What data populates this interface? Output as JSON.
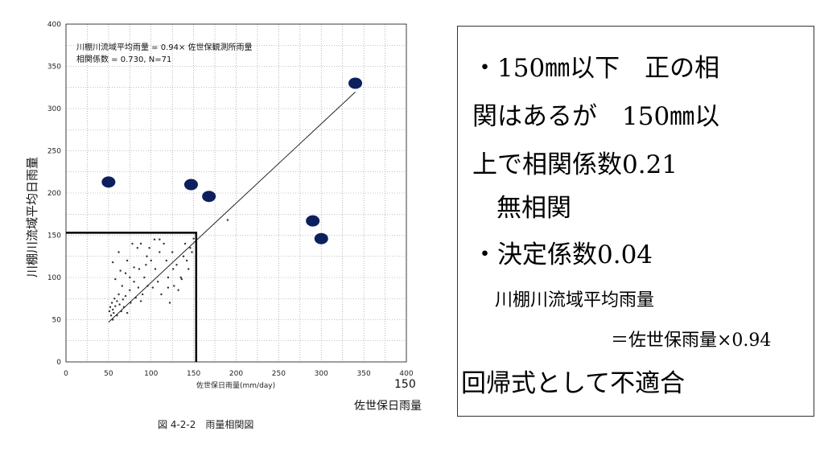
{
  "chart_data": {
    "type": "scatter",
    "ylabel": "川棚川流域平均日雨量",
    "xlabel": "佐世保日雨量(mm/day)",
    "xlim": [
      0,
      400
    ],
    "ylim": [
      0,
      400
    ],
    "xticks": [
      0,
      50,
      100,
      150,
      200,
      250,
      300,
      350,
      400
    ],
    "yticks": [
      0,
      50,
      100,
      150,
      200,
      250,
      300,
      350,
      400
    ],
    "grid": true,
    "annotation": [
      "川棚川流域平均雨量 = 0.94× 佐世保観測所雨量",
      "相関係数 = 0.730, N=71"
    ],
    "caption": "図 4-2-2　雨量相関図",
    "regression": {
      "slope": 0.94,
      "x": [
        50,
        340
      ]
    },
    "highlight_box": {
      "x_max": 153,
      "y_max": 153
    },
    "highlighted_points": [
      {
        "x": 50,
        "y": 213
      },
      {
        "x": 147,
        "y": 210
      },
      {
        "x": 168,
        "y": 196
      },
      {
        "x": 290,
        "y": 167
      },
      {
        "x": 300,
        "y": 146
      },
      {
        "x": 340,
        "y": 330
      }
    ],
    "small_points": [
      [
        51,
        60
      ],
      [
        52,
        65
      ],
      [
        53,
        55
      ],
      [
        54,
        70
      ],
      [
        55,
        62
      ],
      [
        55,
        50
      ],
      [
        56,
        58
      ],
      [
        57,
        75
      ],
      [
        58,
        66
      ],
      [
        60,
        72
      ],
      [
        60,
        55
      ],
      [
        62,
        80
      ],
      [
        63,
        68
      ],
      [
        65,
        60
      ],
      [
        66,
        90
      ],
      [
        67,
        74
      ],
      [
        68,
        65
      ],
      [
        70,
        78
      ],
      [
        70,
        105
      ],
      [
        72,
        58
      ],
      [
        75,
        85
      ],
      [
        76,
        70
      ],
      [
        78,
        140
      ],
      [
        80,
        95
      ],
      [
        82,
        76
      ],
      [
        85,
        88
      ],
      [
        86,
        110
      ],
      [
        88,
        72
      ],
      [
        90,
        80
      ],
      [
        92,
        100
      ],
      [
        95,
        125
      ],
      [
        96,
        90
      ],
      [
        98,
        135
      ],
      [
        100,
        120
      ],
      [
        102,
        88
      ],
      [
        104,
        145
      ],
      [
        105,
        110
      ],
      [
        108,
        95
      ],
      [
        110,
        130
      ],
      [
        112,
        80
      ],
      [
        115,
        140
      ],
      [
        118,
        120
      ],
      [
        120,
        100
      ],
      [
        122,
        70
      ],
      [
        125,
        130
      ],
      [
        127,
        90
      ],
      [
        130,
        115
      ],
      [
        132,
        85
      ],
      [
        135,
        100
      ],
      [
        138,
        125
      ],
      [
        140,
        140
      ],
      [
        142,
        120
      ],
      [
        144,
        110
      ],
      [
        146,
        135
      ],
      [
        148,
        130
      ],
      [
        55,
        118
      ],
      [
        58,
        98
      ],
      [
        62,
        130
      ],
      [
        64,
        108
      ],
      [
        72,
        120
      ],
      [
        75,
        100
      ],
      [
        80,
        112
      ],
      [
        84,
        135
      ],
      [
        88,
        140
      ],
      [
        94,
        115
      ],
      [
        110,
        145
      ],
      [
        120,
        88
      ],
      [
        126,
        110
      ],
      [
        136,
        98
      ],
      [
        150,
        146
      ],
      [
        190,
        168
      ]
    ]
  },
  "side": {
    "tick150": "150",
    "xlabel": "佐世保日雨量"
  },
  "notes": {
    "l1": "・150㎜以下　正の相",
    "l2": "関はあるが　150㎜以",
    "l3": "上で相関係数0.21",
    "l4": "無相関",
    "l5": "・決定係数0.04",
    "l6": "川棚川流域平均雨量",
    "l7": "＝佐世保雨量×0.94",
    "l8": "回帰式として不適合"
  },
  "colors": {
    "marker": "#0d1f5c",
    "axis": "#111111",
    "grid": "#888888"
  }
}
